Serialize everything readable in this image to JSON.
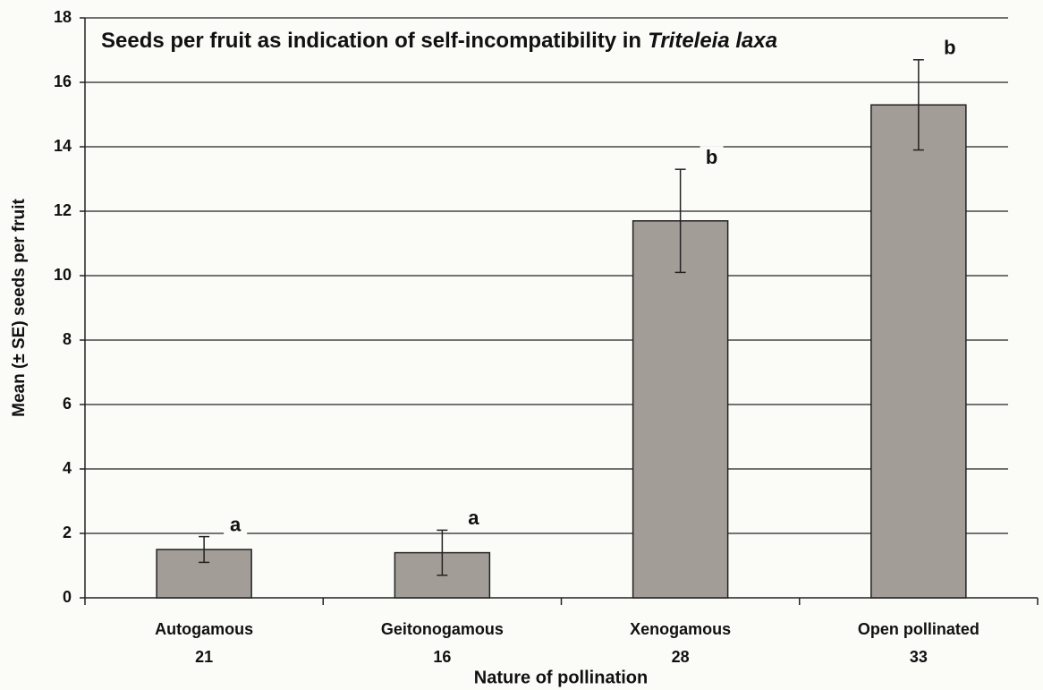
{
  "chart_data": {
    "type": "bar",
    "title": [
      "Seeds per fruit as indication of self-incompatibility in",
      "Triteleia laxa"
    ],
    "x_label": "Nature of pollination",
    "y_label": "Mean (± SE) seeds per fruit",
    "categories": [
      "Autogamous",
      "Geitonogamous",
      "Xenogamous",
      "Open pollinated"
    ],
    "sample_sizes": [
      "21",
      "16",
      "28",
      "33"
    ],
    "values": [
      1.5,
      1.4,
      11.7,
      15.3
    ],
    "errors": [
      0.4,
      0.7,
      1.6,
      1.4
    ],
    "letters": [
      "a",
      "a",
      "b",
      "b"
    ],
    "color": "#a39d98",
    "ylim": [
      0,
      18
    ],
    "yticks": [
      0,
      2,
      4,
      6,
      8,
      10,
      12,
      14,
      16,
      18
    ],
    "grid": true
  }
}
